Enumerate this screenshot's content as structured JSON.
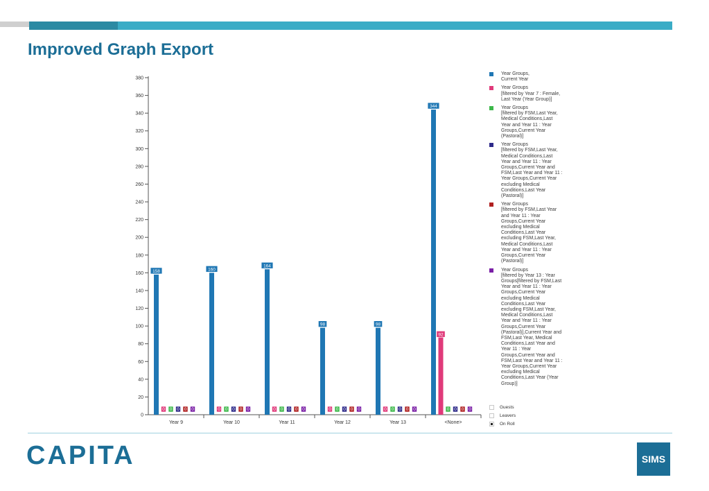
{
  "title": "Improved Graph Export",
  "footer": {
    "brand": "CAPITA",
    "product": "SIMS"
  },
  "legend": [
    {
      "label": "Year Groups,\nCurrent Year",
      "color": "#1f77b4"
    },
    {
      "label": "Year Groups\n[filtered by Year  7 : Female,\nLast Year (Year Group)]",
      "color": "#e03a7a"
    },
    {
      "label": "Year Groups\n[filtered by FSM,Last Year,\nMedical Conditions,Last\nYear and Year 11 : Year\nGroups,Current Year\n(Pastoral)]",
      "color": "#3cb84a"
    },
    {
      "label": "Year Groups\n[filtered by FSM,Last Year,\nMedical Conditions,Last\nYear and Year 11 : Year\nGroups,Current Year and\nFSM,Last Year and Year 11 :\nYear Groups,Current Year\nexcluding Medical\nConditions,Last Year\n(Pastoral)]",
      "color": "#2e2a8a"
    },
    {
      "label": "Year Groups\n[filtered by FSM,Last Year\nand Year 11 : Year\nGroups,Current Year\nexcluding Medical\nConditions,Last Year\nexcluding FSM,Last Year,\nMedical Conditions,Last\nYear and Year 11 : Year\nGroups,Current Year\n(Pastoral)]",
      "color": "#b02020"
    },
    {
      "label": "Year Groups\n[filtered by Year 13 : Year\nGroups[filtered by FSM,Last\nYear and Year 11 : Year\nGroups,Current Year\nexcluding Medical\nConditions,Last Year\nexcluding FSM,Last Year,\nMedical Conditions,Last\nYear and Year 11 : Year\nGroups,Current Year\n(Pastoral)],Current Year and\nFSM,Last Year, Medical\nConditions,Last Year and\nYear 11 : Year\nGroups,Current Year and\nFSM,Last Year and Year 11 :\nYear Groups,Current Year\nexcluding Medical\nConditions,Last Year (Year\nGroup)]",
      "color": "#7a1fa6"
    }
  ],
  "filters": [
    {
      "label": "Guests",
      "checked": false
    },
    {
      "label": "Leavers",
      "checked": false
    },
    {
      "label": "On Roll",
      "checked": true
    }
  ],
  "chart_data": {
    "type": "bar",
    "categories": [
      "Year  9",
      "Year 10",
      "Year 11",
      "Year 12",
      "Year 13",
      "<None>"
    ],
    "series": [
      {
        "values": [
          158,
          160,
          164,
          98,
          98,
          344
        ],
        "color": "#1f77b4"
      },
      {
        "values": [
          0,
          0,
          0,
          0,
          0,
          92
        ],
        "color": "#e03a7a"
      },
      {
        "values": [
          0,
          0,
          0,
          0,
          0,
          0
        ],
        "color": "#3cb84a"
      },
      {
        "values": [
          0,
          0,
          0,
          0,
          0,
          0
        ],
        "color": "#2e2a8a"
      },
      {
        "values": [
          0,
          0,
          0,
          0,
          0,
          0
        ],
        "color": "#b02020"
      },
      {
        "values": [
          0,
          0,
          0,
          0,
          0,
          0
        ],
        "color": "#7a1fa6"
      }
    ],
    "ylim": [
      0,
      380
    ],
    "ytick_step": 20,
    "data_labels": true,
    "legend_position": "right"
  }
}
